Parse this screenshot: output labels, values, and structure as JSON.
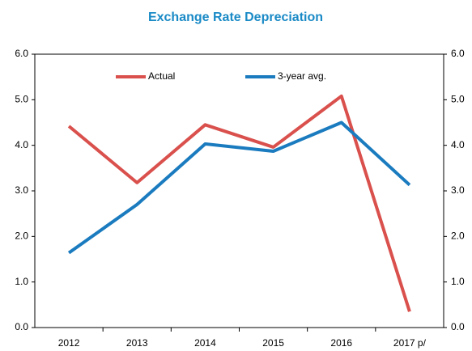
{
  "chart_data": {
    "type": "line",
    "title": "Exchange Rate Depreciation",
    "categories": [
      "2012",
      "2013",
      "2014",
      "2015",
      "2016",
      "2017 p/"
    ],
    "series": [
      {
        "name": "Actual",
        "color": "#d9504c",
        "values": [
          4.42,
          3.18,
          4.45,
          3.96,
          5.08,
          0.35
        ]
      },
      {
        "name": "3-year avg.",
        "color": "#1a7bbf",
        "values": [
          1.64,
          2.7,
          4.03,
          3.87,
          4.5,
          3.13
        ]
      }
    ],
    "ylim": [
      0,
      6
    ],
    "yticks": [
      {
        "value": 0,
        "label": "0.0"
      },
      {
        "value": 1,
        "label": "1.0"
      },
      {
        "value": 2,
        "label": "2.0"
      },
      {
        "value": 3,
        "label": "3.0"
      },
      {
        "value": 4,
        "label": "4.0"
      },
      {
        "value": 5,
        "label": "5.0"
      },
      {
        "value": 6,
        "label": "6.0"
      }
    ],
    "y2lim": [
      0,
      6
    ],
    "y2ticks": [
      {
        "value": 0,
        "label": "0.0"
      },
      {
        "value": 1,
        "label": "1.0"
      },
      {
        "value": 2,
        "label": "2.0"
      },
      {
        "value": 3,
        "label": "3.0"
      },
      {
        "value": 4,
        "label": "4.0"
      },
      {
        "value": 5,
        "label": "5.0"
      },
      {
        "value": 6,
        "label": "6.0"
      }
    ],
    "legend": "top"
  }
}
